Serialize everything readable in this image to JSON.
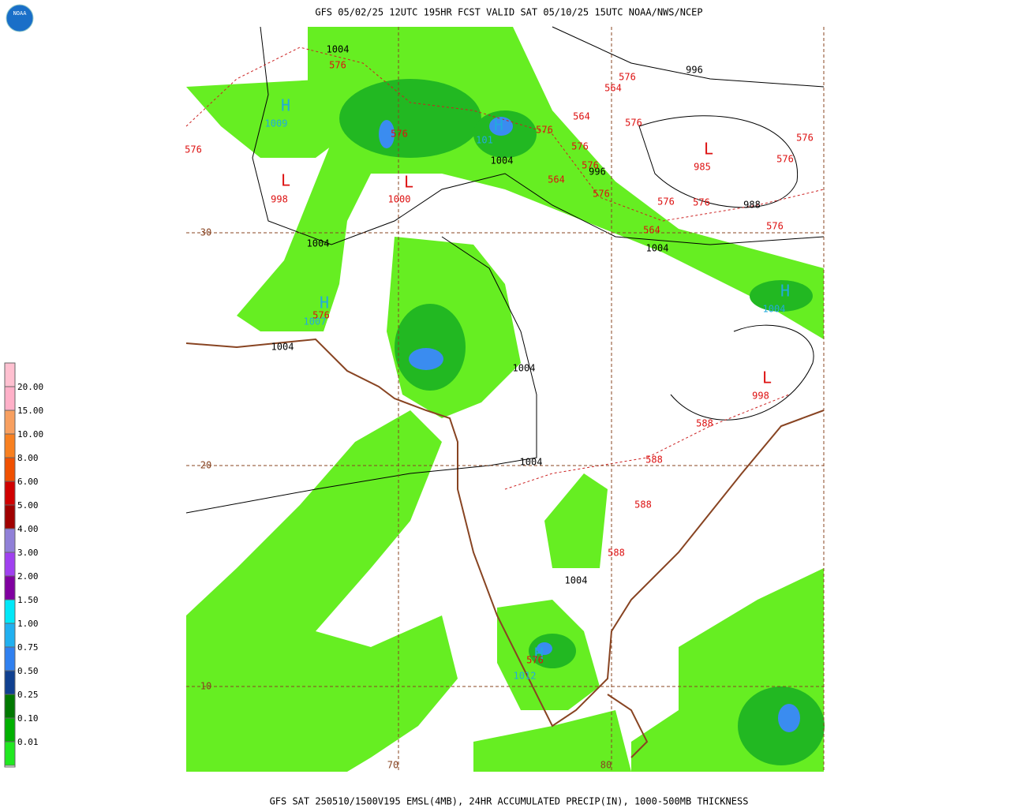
{
  "header": {
    "title": "GFS 05/02/25 12UTC 195HR FCST VALID SAT 05/10/25 15UTC NOAA/NWS/NCEP",
    "logo": "NOAA"
  },
  "footer": {
    "caption": "GFS SAT 250510/1500V195 EMSL(4MB), 24HR ACCUMULATED PRECIP(IN), 1000-500MB THICKNESS"
  },
  "legend": {
    "items": [
      {
        "label": "20.00",
        "color": "#ffb0c8"
      },
      {
        "label": "15.00",
        "color": "#f8a060"
      },
      {
        "label": "10.00",
        "color": "#f88020"
      },
      {
        "label": "8.00",
        "color": "#f05000"
      },
      {
        "label": "6.00",
        "color": "#d00000"
      },
      {
        "label": "5.00",
        "color": "#a00000"
      },
      {
        "label": "4.00",
        "color": "#9080d8"
      },
      {
        "label": "3.00",
        "color": "#a040f0"
      },
      {
        "label": "2.00",
        "color": "#8000a0"
      },
      {
        "label": "1.50",
        "color": "#00e8f8"
      },
      {
        "label": "1.00",
        "color": "#20b0f0"
      },
      {
        "label": "0.75",
        "color": "#3080f0"
      },
      {
        "label": "0.50",
        "color": "#104090"
      },
      {
        "label": "0.25",
        "color": "#007800"
      },
      {
        "label": "0.10",
        "color": "#00b000"
      },
      {
        "label": "0.01",
        "color": "#20e820"
      }
    ]
  },
  "grid": {
    "lat_labels": [
      "30",
      "20",
      "10"
    ],
    "lon_labels": [
      "70",
      "80"
    ]
  },
  "pressure_centers": [
    {
      "symbol": "H",
      "value": "1009"
    },
    {
      "symbol": "H",
      "value": "101"
    },
    {
      "symbol": "H",
      "value": "1007"
    },
    {
      "symbol": "H",
      "value": "1004"
    },
    {
      "symbol": "H",
      "value": "1012"
    },
    {
      "symbol": "L",
      "value": "998"
    },
    {
      "symbol": "L",
      "value": "1000"
    },
    {
      "symbol": "L",
      "value": "985"
    },
    {
      "symbol": "L",
      "value": "998"
    }
  ],
  "isobar_labels": [
    "1004",
    "996",
    "1004",
    "996",
    "988",
    "1004",
    "1004",
    "1004",
    "1004",
    "1004",
    "1004"
  ],
  "thickness_labels": [
    "576",
    "576",
    "564",
    "576",
    "576",
    "564",
    "576",
    "576",
    "576",
    "564",
    "576",
    "576",
    "576",
    "576",
    "576",
    "576",
    "564",
    "576",
    "576",
    "588",
    "588",
    "588",
    "588",
    "576"
  ]
}
